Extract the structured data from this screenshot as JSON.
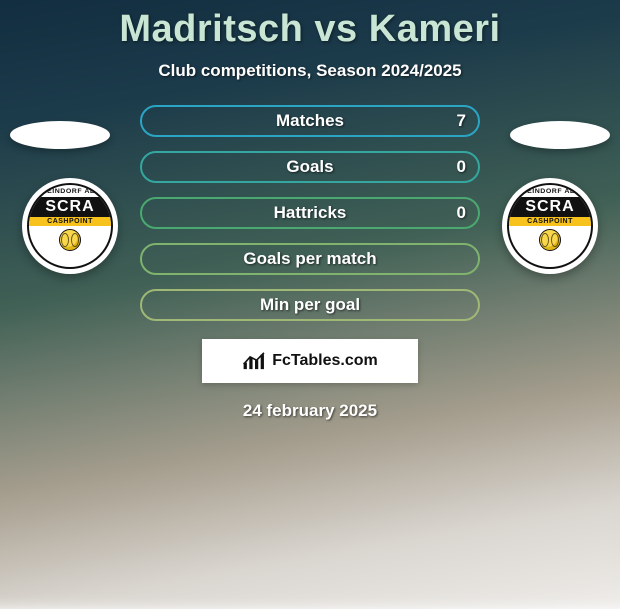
{
  "title": "Madritsch vs Kameri",
  "subtitle": "Club competitions, Season 2024/2025",
  "date": "24 february 2025",
  "branding": {
    "label": "FcTables.com"
  },
  "colors": {
    "title": "#c9e6d4",
    "text_white": "#ffffff",
    "pill_border_start": "#2aa5c4",
    "pill_border_mid": "#4aa970",
    "pill_border_end": "#9fb876"
  },
  "club": {
    "arc_text": "RHEINDORF ALTA",
    "main": "SCRA",
    "sponsor": "CASHPOINT"
  },
  "stats": [
    {
      "label": "Matches",
      "value": "7",
      "border": "#2aa5c4"
    },
    {
      "label": "Goals",
      "value": "0",
      "border": "#34a7a0"
    },
    {
      "label": "Hattricks",
      "value": "0",
      "border": "#4aa970"
    },
    {
      "label": "Goals per match",
      "value": "",
      "border": "#7fb36e"
    },
    {
      "label": "Min per goal",
      "value": "",
      "border": "#9fb876"
    }
  ]
}
